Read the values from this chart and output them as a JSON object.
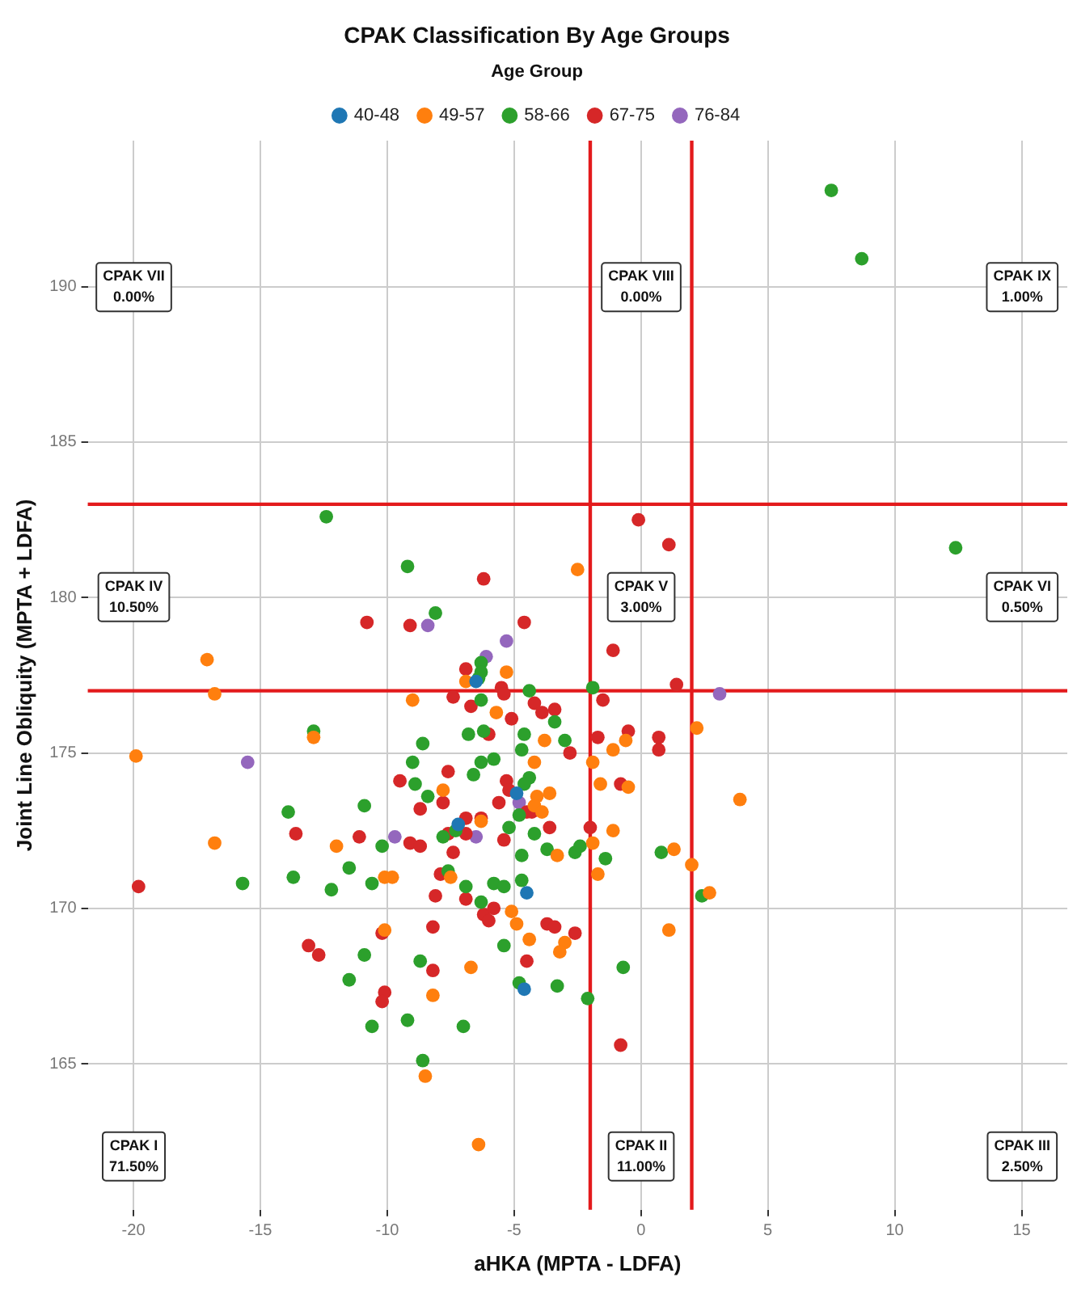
{
  "chart_data": {
    "type": "scatter",
    "title": "CPAK Classification By Age Groups",
    "xlabel": "aHKA (MPTA - LDFA)",
    "ylabel": "Joint Line Obliquity (MPTA + LDFA)",
    "legend_title": "Age Group",
    "legend": "top",
    "grid": true,
    "marker": "circle",
    "xlim": [
      -21.8,
      16.8
    ],
    "xticks": [
      -20,
      -15,
      -10,
      -5,
      0,
      5,
      10,
      15
    ],
    "ylim": [
      160.3,
      194.7
    ],
    "yticks": [
      165,
      170,
      175,
      180,
      185,
      190
    ],
    "series": [
      {
        "name": "40-48",
        "color": "#1f77b4",
        "x": [
          -6.5,
          -4.9,
          -7.2,
          -4.5,
          -4.6
        ],
        "values": [
          177.3,
          173.7,
          172.7,
          170.5,
          167.4
        ]
      },
      {
        "name": "49-57",
        "color": "#ff7f0e",
        "x": [
          -2.5,
          -17.1,
          -16.8,
          -9.0,
          -12.9,
          -19.9,
          -16.8,
          -12.0,
          -10.1,
          -9.8,
          -10.1,
          -8.5,
          -5.1,
          -4.9,
          -4.4,
          -3.0,
          -3.2,
          -6.7,
          -8.2,
          1.1,
          2.7,
          -6.4,
          -5.3,
          -6.9,
          -5.7,
          -3.8,
          -0.6,
          -1.1,
          2.2,
          -1.9,
          -4.2,
          -1.6,
          -0.5,
          3.9,
          -7.8,
          -4.1,
          -4.2,
          -3.6,
          -3.9,
          -6.3,
          -1.1,
          -1.9,
          -3.3,
          1.3,
          2.0,
          -7.5,
          -1.7
        ],
        "values": [
          180.9,
          178.0,
          176.9,
          176.7,
          175.5,
          174.9,
          172.1,
          172.0,
          171.0,
          171.0,
          169.3,
          164.6,
          169.9,
          169.5,
          169.0,
          168.9,
          168.6,
          168.1,
          167.2,
          169.3,
          170.5,
          162.4,
          177.6,
          177.3,
          176.3,
          175.4,
          175.4,
          175.1,
          175.8,
          174.7,
          174.7,
          174.0,
          173.9,
          173.5,
          173.8,
          173.6,
          173.3,
          173.7,
          173.1,
          172.8,
          172.5,
          172.1,
          171.7,
          171.9,
          171.4,
          171.0,
          171.1
        ]
      },
      {
        "name": "58-66",
        "color": "#2ca02c",
        "x": [
          7.5,
          8.7,
          -12.4,
          12.4,
          -9.2,
          -12.9,
          -8.6,
          -9.0,
          -8.9,
          -10.9,
          -13.9,
          -10.2,
          -11.5,
          -10.6,
          -12.2,
          -13.7,
          -15.7,
          -10.9,
          -8.7,
          -11.5,
          -9.2,
          -10.6,
          -8.6,
          -6.3,
          -5.4,
          -4.8,
          -3.3,
          -2.1,
          -7.0,
          -0.7,
          2.4,
          -8.1,
          -6.3,
          -6.3,
          -6.4,
          -4.4,
          -1.9,
          -6.3,
          -3.4,
          -6.8,
          -6.2,
          -4.6,
          -3.0,
          -4.7,
          -6.3,
          -5.8,
          -6.6,
          -8.4,
          -4.4,
          -4.6,
          -4.8,
          -7.3,
          -7.8,
          -5.2,
          -4.2,
          -3.7,
          -2.6,
          -2.4,
          -1.4,
          0.8,
          -4.7,
          -7.6,
          -5.8,
          -5.4,
          -4.7,
          -6.9
        ],
        "values": [
          193.1,
          190.9,
          182.6,
          181.6,
          181.0,
          175.7,
          175.3,
          174.7,
          174.0,
          173.3,
          173.1,
          172.0,
          171.3,
          170.8,
          170.6,
          171.0,
          170.8,
          168.5,
          168.3,
          167.7,
          166.4,
          166.2,
          165.1,
          170.2,
          168.8,
          167.6,
          167.5,
          167.1,
          166.2,
          168.1,
          170.4,
          179.5,
          177.9,
          177.6,
          177.4,
          177.0,
          177.1,
          176.7,
          176.0,
          175.6,
          175.7,
          175.6,
          175.4,
          175.1,
          174.7,
          174.8,
          174.3,
          173.6,
          174.2,
          174.0,
          173.0,
          172.5,
          172.3,
          172.6,
          172.4,
          171.9,
          171.8,
          172.0,
          171.6,
          171.8,
          171.7,
          171.2,
          170.8,
          170.7,
          170.9,
          170.7
        ]
      },
      {
        "name": "67-75",
        "color": "#d62728",
        "x": [
          -0.1,
          1.1,
          -6.2,
          -10.8,
          -9.1,
          -9.5,
          -8.7,
          -13.6,
          -11.1,
          -9.1,
          -8.7,
          -19.8,
          -10.2,
          -13.1,
          -12.7,
          -10.1,
          -10.2,
          -8.1,
          -6.9,
          -6.2,
          -6.0,
          -5.8,
          -8.2,
          -3.7,
          -3.4,
          -2.6,
          -4.5,
          -8.2,
          -0.8,
          -4.6,
          -1.1,
          -6.9,
          -5.5,
          1.4,
          -7.4,
          -5.4,
          -1.5,
          -6.7,
          -4.2,
          -3.9,
          -3.4,
          -5.1,
          -6.0,
          -2.8,
          -1.7,
          -0.5,
          0.7,
          0.7,
          -7.6,
          -5.3,
          -5.2,
          -0.8,
          -7.8,
          -5.6,
          -4.5,
          -4.3,
          -6.9,
          -6.3,
          -7.6,
          -6.9,
          -5.4,
          -3.6,
          -2.0,
          -7.4,
          -7.9
        ],
        "values": [
          182.5,
          181.7,
          180.6,
          179.2,
          179.1,
          174.1,
          173.2,
          172.4,
          172.3,
          172.1,
          172.0,
          170.7,
          169.2,
          168.8,
          168.5,
          167.3,
          167.0,
          170.4,
          170.3,
          169.8,
          169.6,
          170.0,
          169.4,
          169.5,
          169.4,
          169.2,
          168.3,
          168.0,
          165.6,
          179.2,
          178.3,
          177.7,
          177.1,
          177.2,
          176.8,
          176.9,
          176.7,
          176.5,
          176.6,
          176.3,
          176.4,
          176.1,
          175.6,
          175.0,
          175.5,
          175.7,
          175.5,
          175.1,
          174.4,
          174.1,
          173.8,
          174.0,
          173.4,
          173.4,
          173.1,
          173.1,
          172.9,
          172.9,
          172.4,
          172.4,
          172.2,
          172.6,
          172.6,
          171.8,
          171.1
        ]
      },
      {
        "name": "76-84",
        "color": "#9467bd",
        "x": [
          -8.4,
          -5.3,
          -6.1,
          3.1,
          -15.5,
          -9.7,
          -4.8,
          -6.5
        ],
        "values": [
          179.1,
          178.6,
          178.1,
          176.9,
          174.7,
          172.3,
          173.4,
          172.3
        ]
      }
    ],
    "ref_lines": [
      {
        "axis": "x",
        "value": -2,
        "color": "#e31a1c"
      },
      {
        "axis": "x",
        "value": 2,
        "color": "#e31a1c"
      },
      {
        "axis": "y",
        "value": 177,
        "color": "#e31a1c"
      },
      {
        "axis": "y",
        "value": 183,
        "color": "#e31a1c"
      }
    ],
    "annotations": [
      "CPAK VII\n0.00%",
      "CPAK VIII\n0.00%",
      "CPAK IX\n1.00%",
      "CPAK IV\n10.50%",
      "CPAK V\n3.00%",
      "CPAK VI\n0.50%",
      "CPAK I\n71.50%",
      "CPAK II\n11.00%",
      "CPAK III\n2.50%"
    ]
  }
}
